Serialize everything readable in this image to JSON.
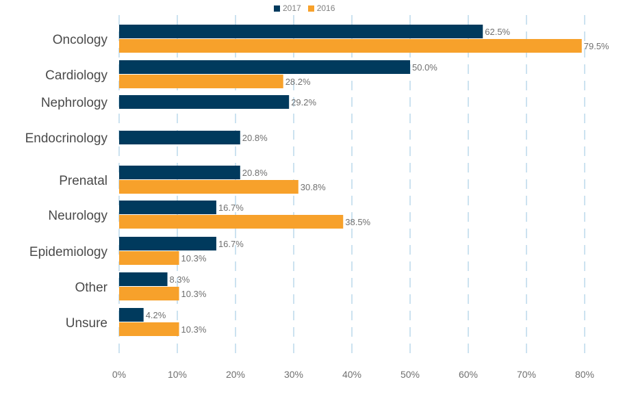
{
  "chart_data": {
    "type": "bar",
    "orientation": "horizontal",
    "title": "",
    "xlabel": "",
    "ylabel": "",
    "categories": [
      "Oncology",
      "Cardiology",
      "Nephrology",
      "Endocrinology",
      "Prenatal",
      "Neurology",
      "Epidemiology",
      "Other",
      "Unsure"
    ],
    "series": [
      {
        "name": "2017",
        "color": "#003a5d",
        "values": [
          62.5,
          50.0,
          29.2,
          20.8,
          20.8,
          16.7,
          16.7,
          8.3,
          4.2
        ]
      },
      {
        "name": "2016",
        "color": "#f7a12b",
        "values": [
          79.5,
          28.2,
          null,
          null,
          30.8,
          38.5,
          10.3,
          10.3,
          10.3
        ]
      }
    ],
    "data_labels": {
      "2017": [
        "62.5%",
        "50.0%",
        "29.2%",
        "20.8%",
        "20.8%",
        "16.7%",
        "16.7%",
        "8.3%",
        "4.2%"
      ],
      "2016": [
        "79.5%",
        "28.2%",
        "",
        "",
        "30.8%",
        "38.5%",
        "10.3%",
        "10.3%",
        "10.3%"
      ]
    },
    "xlim": [
      0,
      80
    ],
    "xticks": [
      0,
      10,
      20,
      30,
      40,
      50,
      60,
      70,
      80
    ],
    "xtick_labels": [
      "0%",
      "10%",
      "20%",
      "30%",
      "40%",
      "50%",
      "60%",
      "70%",
      "80%"
    ],
    "grid": "vertical dashed",
    "legend_position": "top-center"
  }
}
